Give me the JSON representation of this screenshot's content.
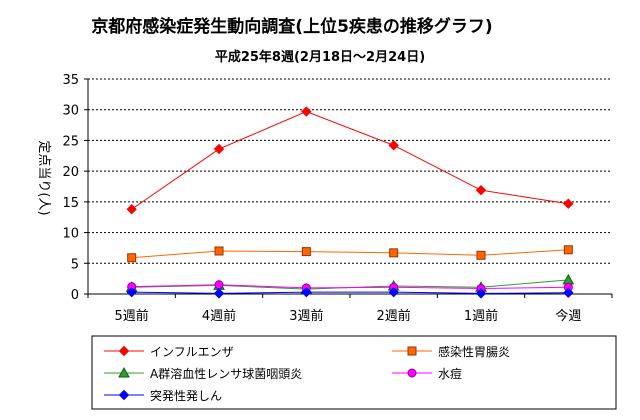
{
  "chart_data": {
    "type": "line",
    "title": "京都府感染症発生動向調査(上位5疾患の推移グラフ)",
    "subtitle": "平成25年8週(2月18日～2月24日)",
    "ylabel": "定点当り(人)",
    "xlabel": "",
    "categories": [
      "5週前",
      "4週前",
      "3週前",
      "2週前",
      "1週前",
      "今週"
    ],
    "ylim": [
      0,
      35
    ],
    "yticks": [
      0,
      5,
      10,
      15,
      20,
      25,
      30,
      35
    ],
    "grid": "horizontal",
    "legend_position": "bottom",
    "series": [
      {
        "name": "インフルエンザ",
        "color": "#ff0000",
        "marker": "diamond",
        "values": [
          13.8,
          23.6,
          29.7,
          24.2,
          16.9,
          14.7
        ]
      },
      {
        "name": "感染性胃腸炎",
        "color": "#ff6600",
        "marker": "square",
        "values": [
          5.9,
          7.0,
          6.9,
          6.7,
          6.3,
          7.2
        ]
      },
      {
        "name": "A群溶血性レンサ球菌咽頭炎",
        "color": "#339933",
        "marker": "triangle",
        "values": [
          1.1,
          1.4,
          0.8,
          1.3,
          1.1,
          2.3
        ]
      },
      {
        "name": "水痘",
        "color": "#ff00ff",
        "marker": "circle",
        "values": [
          1.2,
          1.5,
          1.0,
          1.1,
          0.9,
          1.1
        ]
      },
      {
        "name": "突発性発しん",
        "color": "#0000ff",
        "marker": "diamond",
        "values": [
          0.3,
          0.1,
          0.3,
          0.3,
          0.1,
          0.2
        ]
      }
    ]
  }
}
